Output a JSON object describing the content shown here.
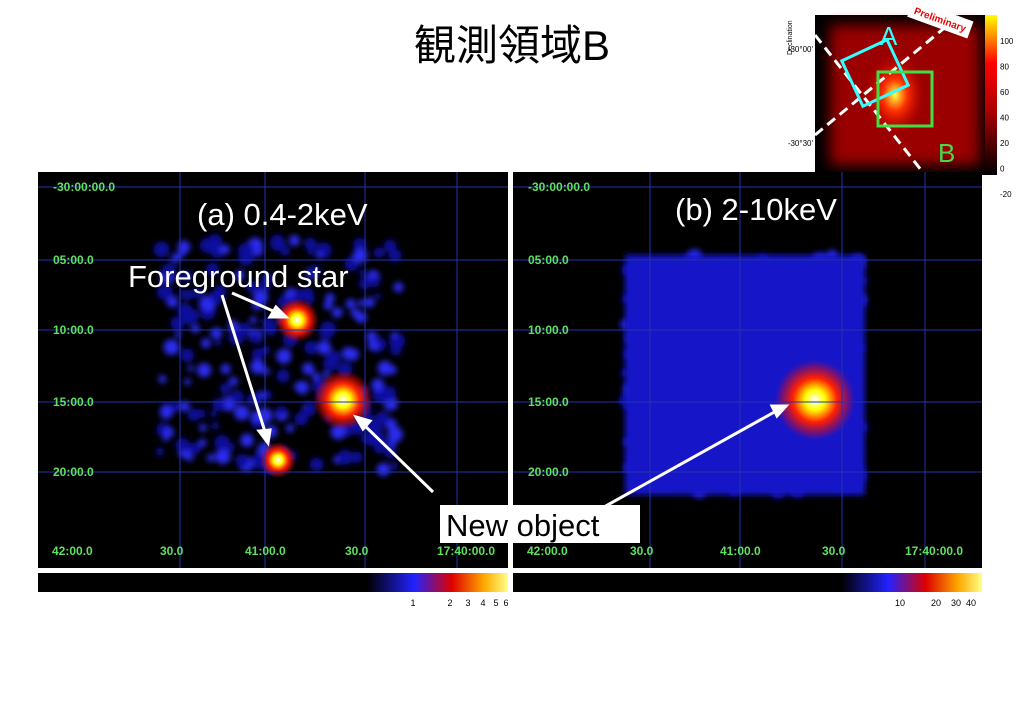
{
  "title": "観測領域B",
  "panels": [
    {
      "label": "(a) 0.4-2keV",
      "y_labels": [
        "-30:00:00.0",
        "05:00.0",
        "10:00.0",
        "15:00.0",
        "20:00.0"
      ],
      "x_labels": [
        "42:00.0",
        "30.0",
        "41:00.0",
        "30.0",
        "17:40:00.0"
      ],
      "colorbar_labels": [
        "1",
        "2",
        "3",
        "4",
        "5",
        "6"
      ]
    },
    {
      "label": "(b) 2-10keV",
      "y_labels": [
        "-30:00:00.0",
        "05:00.0",
        "10:00.0",
        "15:00.0",
        "20:00.0"
      ],
      "x_labels": [
        "42:00.0",
        "30.0",
        "41:00.0",
        "30.0",
        "17:40:00.0"
      ],
      "colorbar_labels": [
        "10",
        "20",
        "30",
        "40"
      ]
    }
  ],
  "annotations": {
    "foreground_star": "Foreground star",
    "new_object": "New object"
  },
  "inset": {
    "labels": [
      "A",
      "B"
    ],
    "stamp": "Preliminary",
    "axis_label": "Declination",
    "y_labels": [
      "-30°00'",
      "-30°30'"
    ],
    "colorbar_labels": [
      "100",
      "80",
      "60",
      "40",
      "20",
      "0",
      "-20"
    ]
  }
}
